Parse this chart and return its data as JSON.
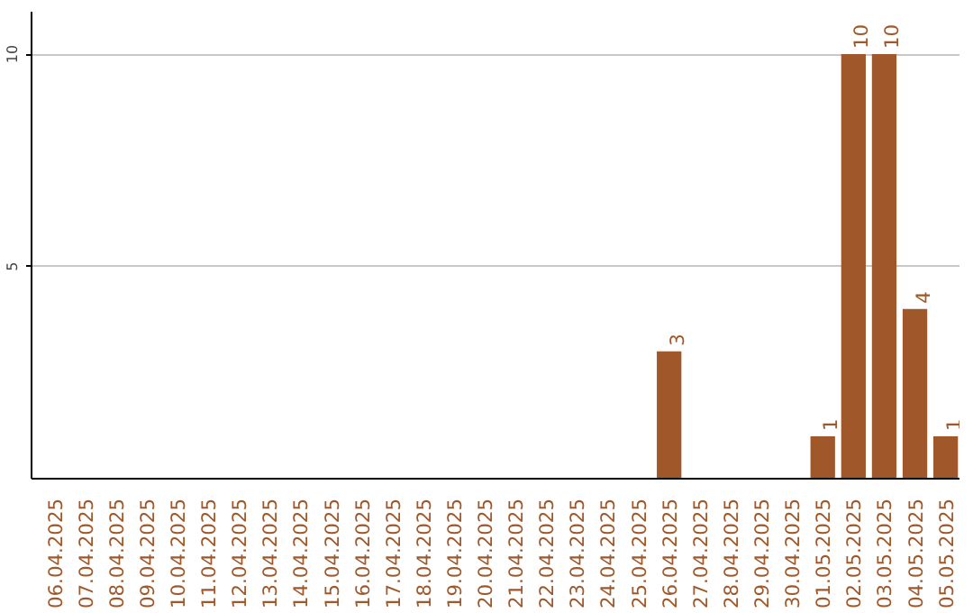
{
  "chart_data": {
    "type": "bar",
    "categories": [
      "06.04.2025",
      "07.04.2025",
      "08.04.2025",
      "09.04.2025",
      "10.04.2025",
      "11.04.2025",
      "12.04.2025",
      "13.04.2025",
      "14.04.2025",
      "15.04.2025",
      "16.04.2025",
      "17.04.2025",
      "18.04.2025",
      "19.04.2025",
      "20.04.2025",
      "21.04.2025",
      "22.04.2025",
      "23.04.2025",
      "24.04.2025",
      "25.04.2025",
      "26.04.2025",
      "27.04.2025",
      "28.04.2025",
      "29.04.2025",
      "30.04.2025",
      "01.05.2025",
      "02.05.2025",
      "03.05.2025",
      "04.05.2025",
      "05.05.2025"
    ],
    "values": [
      0,
      0,
      0,
      0,
      0,
      0,
      0,
      0,
      0,
      0,
      0,
      0,
      0,
      0,
      0,
      0,
      0,
      0,
      0,
      0,
      3,
      0,
      0,
      0,
      0,
      1,
      10,
      10,
      4,
      1
    ],
    "value_labels": [
      null,
      null,
      null,
      null,
      null,
      null,
      null,
      null,
      null,
      null,
      null,
      null,
      null,
      null,
      null,
      null,
      null,
      null,
      null,
      null,
      "3",
      null,
      null,
      null,
      null,
      "1",
      "10",
      "10",
      "4",
      "1"
    ],
    "color": "#a0582a",
    "ylim": [
      0,
      11
    ],
    "yticks": [
      5,
      10
    ],
    "grid": "y"
  }
}
